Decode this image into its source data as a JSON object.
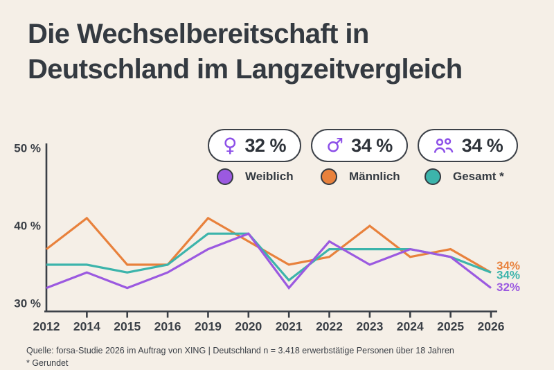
{
  "title": {
    "line1": "Die Wechselbereitschaft in",
    "line2": "Deutschland im Langzeitvergleich"
  },
  "colors": {
    "background": "#f5efe7",
    "text_dark": "#343a41",
    "icon_purple": "#8c4fe8",
    "weiblich": "#9b59e0",
    "maennlich": "#e8813c",
    "gesamt": "#3cb4ab"
  },
  "legend": {
    "pills": [
      {
        "icon": "female-icon",
        "glyph": "♀",
        "value": "32 %"
      },
      {
        "icon": "male-icon",
        "glyph": "♂",
        "value": "34 %"
      },
      {
        "icon": "group-icon",
        "glyph": "",
        "value": "34 %"
      }
    ],
    "items": [
      {
        "label": "Weiblich",
        "color": "#9b59e0"
      },
      {
        "label": "Männlich",
        "color": "#e8813c"
      },
      {
        "label": "Gesamt *",
        "color": "#3cb4ab"
      }
    ]
  },
  "chart_data": {
    "type": "line",
    "categories": [
      "2012",
      "2014",
      "2015",
      "2016",
      "2019",
      "2020",
      "2021",
      "2022",
      "2023",
      "2024",
      "2025",
      "2026"
    ],
    "series": [
      {
        "name": "Weiblich",
        "color": "#9b59e0",
        "values": [
          32,
          34,
          32,
          34,
          37,
          39,
          32,
          38,
          35,
          37,
          36,
          32
        ],
        "end_label": "32%"
      },
      {
        "name": "Männlich",
        "color": "#e8813c",
        "values": [
          37,
          41,
          35,
          35,
          41,
          38,
          35,
          36,
          40,
          36,
          37,
          34
        ],
        "end_label": "34%"
      },
      {
        "name": "Gesamt",
        "color": "#3cb4ab",
        "values": [
          35,
          35,
          34,
          35,
          39,
          39,
          33,
          37,
          37,
          37,
          36,
          34
        ],
        "end_label": "34%"
      }
    ],
    "yticks": [
      {
        "value": 50,
        "label": "50 %"
      },
      {
        "value": 40,
        "label": "40 %"
      },
      {
        "value": 30,
        "label": "30 %"
      }
    ],
    "ylim": [
      29,
      51
    ],
    "xlabel": "",
    "ylabel": "",
    "grid": false,
    "legend_position": "top-right"
  },
  "footer": {
    "source": "Quelle: forsa-Studie 2026 im Auftrag von XING | Deutschland n = 3.418 erwerbstätige Personen über 18 Jahren",
    "note": "* Gerundet"
  }
}
